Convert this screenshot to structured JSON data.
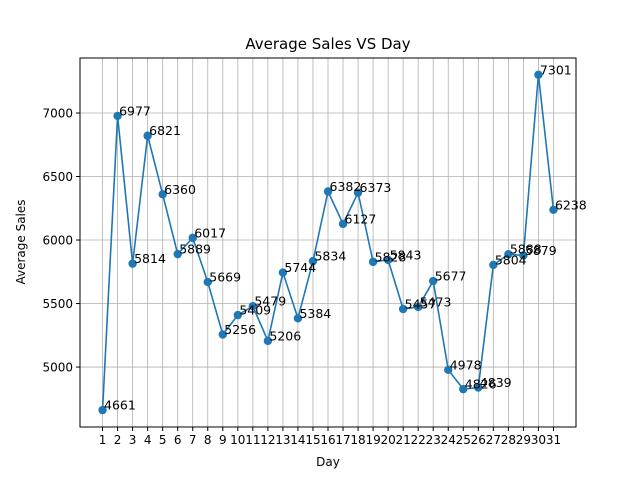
{
  "chart_data": {
    "type": "line",
    "title": "Average Sales VS Day",
    "xlabel": "Day",
    "ylabel": "Average Sales",
    "x": [
      1,
      2,
      3,
      4,
      5,
      6,
      7,
      8,
      9,
      10,
      11,
      12,
      13,
      14,
      15,
      16,
      17,
      18,
      19,
      20,
      21,
      22,
      23,
      24,
      25,
      26,
      27,
      28,
      29,
      30,
      31
    ],
    "values": [
      4661,
      6977,
      5814,
      6821,
      6360,
      5889,
      6017,
      5669,
      5256,
      5409,
      5479,
      5206,
      5744,
      5384,
      5834,
      6382,
      6127,
      6373,
      5828,
      5843,
      5457,
      5473,
      5677,
      4978,
      4826,
      4839,
      5804,
      5888,
      5879,
      7301,
      6238
    ],
    "data_labels": [
      "4661",
      "6977",
      "5814",
      "6821",
      "6360",
      "5889",
      "6017",
      "5669",
      "5256",
      "5409",
      "5479",
      "5206",
      "5744",
      "5384",
      "5834",
      "6382",
      "6127",
      "6373",
      "5828",
      "5843",
      "5457",
      "5473",
      "5677",
      "4978",
      "4826",
      "4839",
      "5804",
      "5888",
      "5879",
      "7301",
      "6238"
    ],
    "x_ticks": [
      "1",
      "2",
      "3",
      "4",
      "5",
      "6",
      "7",
      "8",
      "9",
      "10",
      "11",
      "12",
      "13",
      "14",
      "15",
      "16",
      "17",
      "18",
      "19",
      "20",
      "21",
      "22",
      "23",
      "24",
      "25",
      "26",
      "27",
      "28",
      "29",
      "30",
      "31"
    ],
    "y_ticks": [
      5000,
      5500,
      6000,
      6500,
      7000
    ],
    "y_tick_labels": [
      "5000",
      "5500",
      "6000",
      "6500",
      "7000"
    ],
    "xlim": [
      -0.5,
      32.5
    ],
    "ylim": [
      4528,
      7433
    ],
    "grid": true,
    "line_color": "#1f77b4",
    "marker": "circle"
  }
}
